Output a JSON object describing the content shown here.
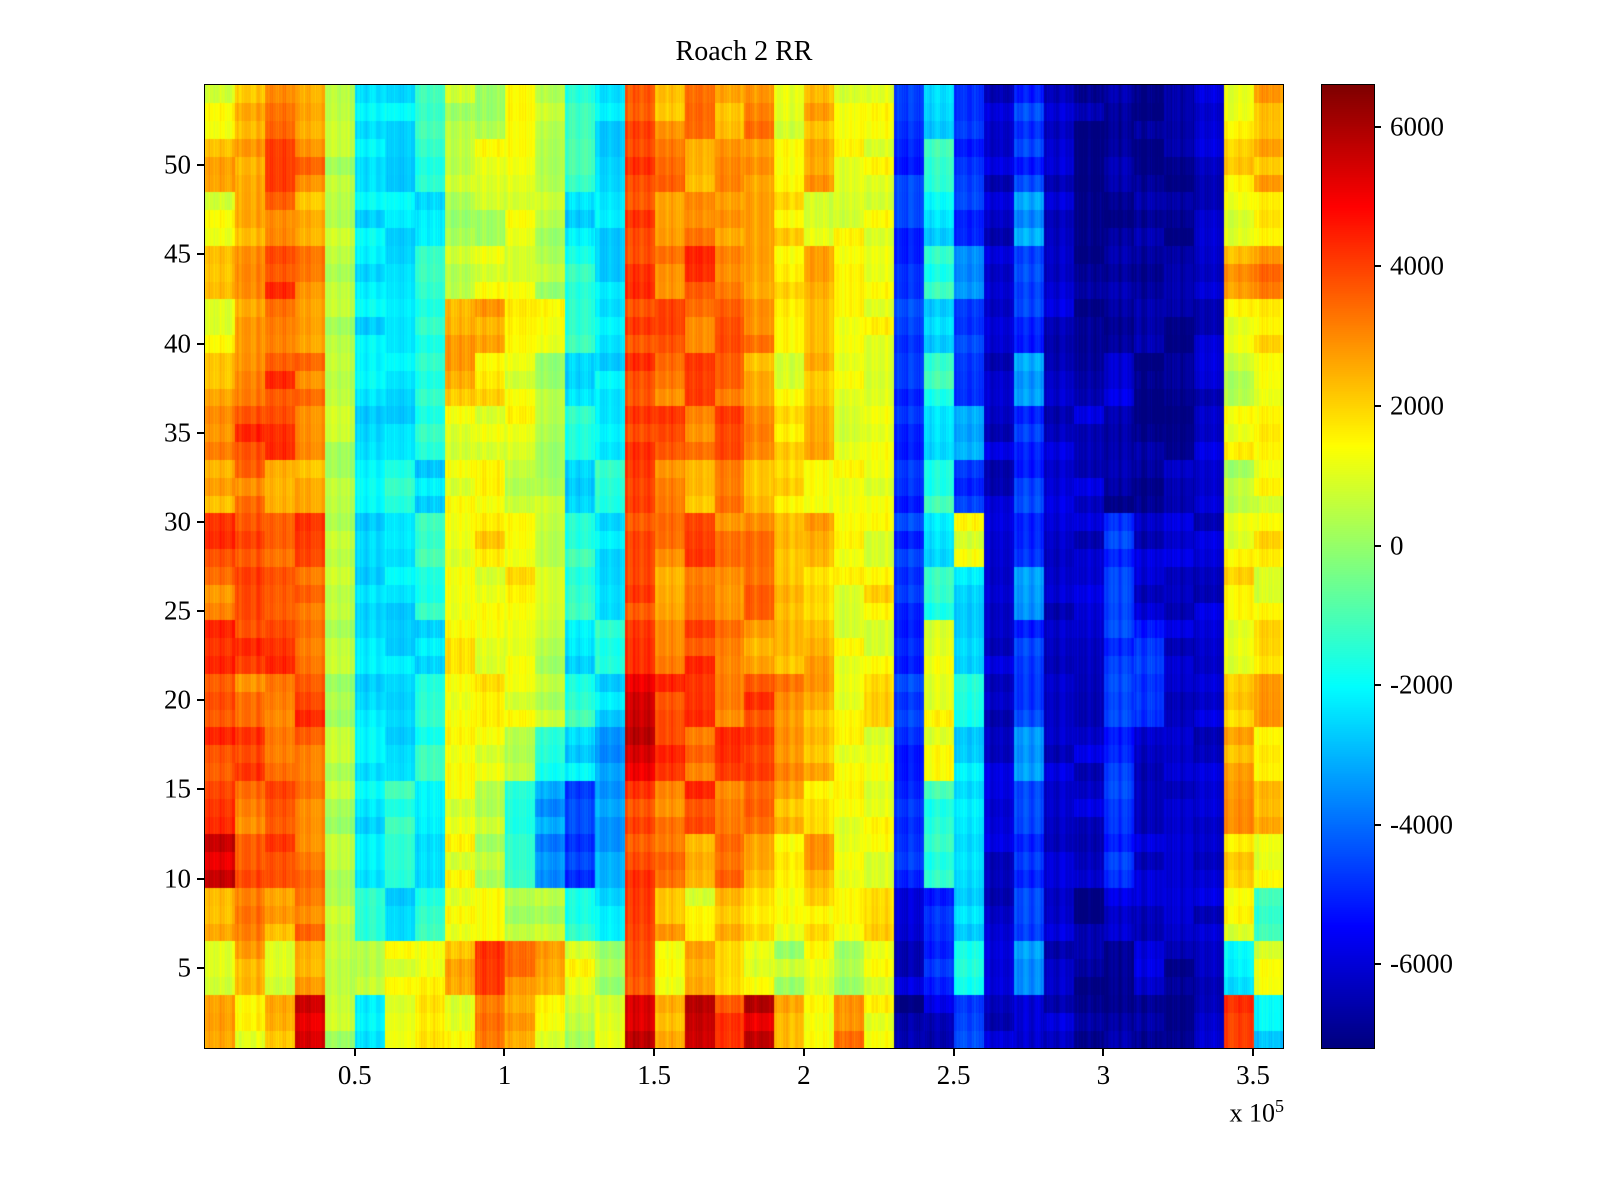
{
  "axis": {
    "exp_prefix": "x 10",
    "exp_power": "5"
  },
  "chart_data": {
    "type": "heatmap",
    "title": "Roach 2 RR",
    "xlabel": "",
    "ylabel": "",
    "x_scale_note": "x 10^5",
    "x_range": [
      0,
      360000
    ],
    "y_range": [
      0.5,
      54.5
    ],
    "x_ticks": [
      50000,
      100000,
      150000,
      200000,
      250000,
      300000,
      350000
    ],
    "x_tick_labels": [
      "0.5",
      "1",
      "1.5",
      "2",
      "2.5",
      "3",
      "3.5"
    ],
    "y_ticks": [
      5,
      10,
      15,
      20,
      25,
      30,
      35,
      40,
      45,
      50
    ],
    "y_tick_labels": [
      "5",
      "10",
      "15",
      "20",
      "25",
      "30",
      "35",
      "40",
      "45",
      "50"
    ],
    "colorbar": {
      "min": -7200,
      "max": 6600,
      "ticks": [
        6000,
        4000,
        2000,
        0,
        -2000,
        -4000,
        -6000
      ],
      "tick_labels": [
        "6000",
        "4000",
        "2000",
        "0",
        "-2000",
        "-4000",
        "-6000"
      ],
      "colormap": "jet",
      "position": "right"
    },
    "grid": {
      "note": "coarse estimate of heatmap values; 36 x-bins (0 to 3.6e5) by 18 y-bins (y=1..54), rows listed top (y=54) to bottom (y=1)",
      "ncols": 36,
      "nrows": 18,
      "values_top_to_bottom": [
        [
          1200,
          2500,
          3200,
          2500,
          400,
          -2400,
          -2400,
          -1400,
          400,
          400,
          1200,
          400,
          -1400,
          -2400,
          4000,
          2500,
          3200,
          2500,
          3200,
          1200,
          2500,
          1200,
          1200,
          -4800,
          -2400,
          -4800,
          -6200,
          -4800,
          -6200,
          -6900,
          -6900,
          -6900,
          -6900,
          -6200,
          1200,
          2500
        ],
        [
          2500,
          2500,
          4000,
          3200,
          400,
          -2400,
          -2400,
          -1400,
          400,
          1200,
          1200,
          400,
          -1400,
          -2400,
          4000,
          3200,
          2500,
          3200,
          2500,
          1200,
          2500,
          1200,
          1200,
          -4800,
          -1400,
          -4800,
          -6200,
          -4800,
          -6200,
          -6900,
          -6900,
          -6900,
          -6900,
          -6200,
          1800,
          2500
        ],
        [
          1200,
          2500,
          3200,
          2500,
          400,
          -2400,
          -2400,
          -2400,
          400,
          400,
          1200,
          400,
          -2400,
          -2400,
          4000,
          2500,
          3200,
          2500,
          2500,
          1800,
          1200,
          1200,
          1200,
          -4800,
          -2400,
          -4800,
          -6200,
          -3400,
          -6200,
          -6900,
          -6900,
          -6900,
          -6900,
          -6200,
          1200,
          1800
        ],
        [
          2500,
          3200,
          4000,
          3200,
          400,
          -2400,
          -2400,
          -1400,
          400,
          1200,
          1200,
          400,
          -1400,
          -2400,
          4000,
          3200,
          4000,
          3200,
          2500,
          1800,
          2500,
          1200,
          1200,
          -4800,
          -1400,
          -3400,
          -6200,
          -4800,
          -6200,
          -6900,
          -6900,
          -6900,
          -6900,
          -6200,
          2500,
          3200
        ],
        [
          1200,
          2500,
          3200,
          2500,
          400,
          -2400,
          -2400,
          -1400,
          2500,
          2500,
          1800,
          1200,
          -1400,
          -2400,
          4000,
          4000,
          3200,
          4000,
          3200,
          1800,
          2500,
          1200,
          1200,
          -4800,
          -2400,
          -4800,
          -6200,
          -4800,
          -6200,
          -6900,
          -6900,
          -6900,
          -6900,
          -6200,
          1200,
          1800
        ],
        [
          2500,
          3200,
          4000,
          3200,
          400,
          -2400,
          -2400,
          -1400,
          2500,
          1800,
          1200,
          400,
          -2400,
          -2400,
          4000,
          3200,
          4000,
          3200,
          2500,
          1200,
          2500,
          1200,
          1200,
          -4800,
          -1400,
          -4800,
          -6200,
          -3400,
          -6200,
          -6900,
          -6200,
          -6900,
          -6900,
          -6200,
          400,
          1200
        ],
        [
          3200,
          4000,
          4000,
          3200,
          400,
          -2400,
          -2400,
          -1400,
          1200,
          1200,
          1200,
          400,
          -1400,
          -2400,
          4000,
          4000,
          3200,
          4000,
          3200,
          1800,
          2500,
          1200,
          1200,
          -4800,
          -2400,
          -3400,
          -6200,
          -4800,
          -6200,
          -6200,
          -6900,
          -6900,
          -6900,
          -6200,
          1200,
          1800
        ],
        [
          2500,
          3200,
          2500,
          2500,
          400,
          -2400,
          -1400,
          -2400,
          1200,
          1200,
          400,
          400,
          -2400,
          -1400,
          4000,
          3200,
          2500,
          3200,
          2500,
          1800,
          1200,
          1200,
          1200,
          -4800,
          -1400,
          -4800,
          -6200,
          -4800,
          -6200,
          -6200,
          -6900,
          -6900,
          -6200,
          -6200,
          400,
          1200
        ],
        [
          4000,
          4000,
          3200,
          4000,
          400,
          -2400,
          -2400,
          -1400,
          1200,
          1800,
          1200,
          400,
          -1400,
          -2400,
          4000,
          3200,
          4000,
          3200,
          3200,
          2500,
          2500,
          1200,
          1200,
          -4800,
          -2400,
          1200,
          -6200,
          -4800,
          -6200,
          -6200,
          -4800,
          -6200,
          -6200,
          -6200,
          1200,
          1800
        ],
        [
          3200,
          4000,
          4000,
          3200,
          400,
          -2400,
          -2400,
          -1400,
          1200,
          1200,
          1800,
          1200,
          -1400,
          -2400,
          4000,
          2500,
          3200,
          2500,
          3200,
          2500,
          1800,
          1200,
          1800,
          -4800,
          -1400,
          -2400,
          -6200,
          -3400,
          -6200,
          -6200,
          -4800,
          -6200,
          -6200,
          -6200,
          1800,
          1200
        ],
        [
          4000,
          4000,
          4000,
          3200,
          400,
          -2400,
          -2400,
          -2400,
          1800,
          1200,
          1200,
          400,
          -2400,
          -1400,
          4000,
          3200,
          4000,
          3200,
          2500,
          2500,
          2500,
          1200,
          1200,
          -4800,
          1200,
          -2400,
          -6200,
          -4800,
          -6200,
          -6200,
          -4800,
          -4800,
          -6200,
          -6200,
          1200,
          1800
        ],
        [
          4000,
          3200,
          3200,
          4000,
          400,
          -2400,
          -2400,
          -1400,
          1200,
          1800,
          1200,
          400,
          -1400,
          -2400,
          5500,
          4000,
          4000,
          3200,
          4000,
          3200,
          2500,
          1200,
          1800,
          -4800,
          1200,
          -1400,
          -6200,
          -4800,
          -6200,
          -6200,
          -4800,
          -4800,
          -6200,
          -6200,
          1800,
          2500
        ],
        [
          4000,
          4000,
          3200,
          3200,
          400,
          -2400,
          -2400,
          -1400,
          1200,
          1200,
          400,
          -1400,
          -2400,
          -3400,
          5500,
          4000,
          3200,
          4000,
          4000,
          3200,
          2500,
          1200,
          1200,
          -4800,
          1200,
          -2400,
          -6200,
          -3400,
          -6200,
          -6200,
          -4800,
          -6200,
          -6200,
          -6200,
          2500,
          1800
        ],
        [
          4000,
          3200,
          4000,
          3200,
          400,
          -2400,
          -1400,
          -2400,
          1200,
          400,
          -1400,
          -3400,
          -4800,
          -3400,
          4000,
          3200,
          4000,
          3200,
          3200,
          2500,
          1800,
          1200,
          1200,
          -4800,
          -1400,
          -2400,
          -6200,
          -4800,
          -6200,
          -6200,
          -4800,
          -6200,
          -6200,
          -6200,
          3200,
          2500
        ],
        [
          5500,
          4000,
          4000,
          3200,
          400,
          -2400,
          -1400,
          -2400,
          1200,
          400,
          -1400,
          -3400,
          -4800,
          -3400,
          4000,
          3200,
          2500,
          3200,
          2500,
          1800,
          2500,
          1200,
          1200,
          -4800,
          -1400,
          -2400,
          -6200,
          -4800,
          -6200,
          -6200,
          -4800,
          -6200,
          -6200,
          -6200,
          1800,
          1200
        ],
        [
          2500,
          3200,
          2500,
          3200,
          400,
          -1400,
          -2400,
          -1400,
          1200,
          1200,
          400,
          400,
          -1400,
          -2400,
          4000,
          2500,
          1200,
          2500,
          1800,
          1200,
          1800,
          1200,
          1800,
          -6200,
          -4800,
          -2400,
          -6200,
          -4800,
          -6200,
          -6900,
          -6200,
          -6200,
          -6200,
          -6200,
          1200,
          -1400
        ],
        [
          1200,
          2500,
          1200,
          2500,
          400,
          400,
          1200,
          1200,
          2500,
          4000,
          3200,
          2500,
          1200,
          400,
          4000,
          1200,
          2500,
          1800,
          1200,
          400,
          1200,
          400,
          1200,
          -6200,
          -4800,
          -1400,
          -6200,
          -3400,
          -6200,
          -6900,
          -6900,
          -6200,
          -6900,
          -6200,
          -2400,
          1200
        ],
        [
          2500,
          1200,
          2500,
          5500,
          400,
          -2400,
          1200,
          1800,
          1200,
          3200,
          2500,
          1200,
          400,
          1200,
          5500,
          2500,
          5500,
          4000,
          5500,
          2500,
          1200,
          3200,
          1200,
          -6900,
          -6200,
          -4800,
          -6200,
          -6200,
          -6200,
          -6900,
          -6900,
          -6900,
          -6900,
          -6200,
          4000,
          -2400
        ]
      ]
    }
  }
}
